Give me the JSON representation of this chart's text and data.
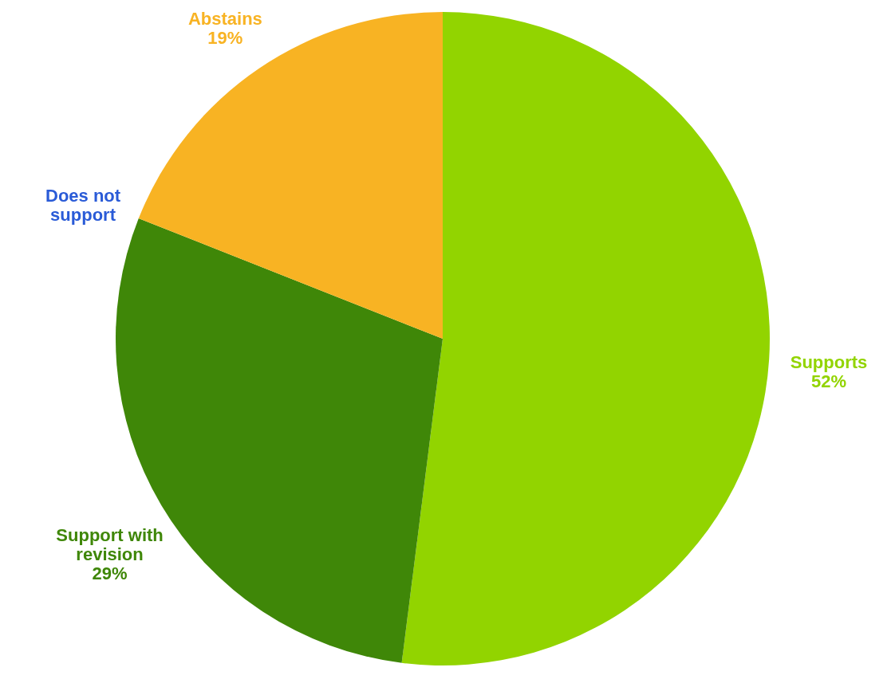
{
  "chart_data": {
    "type": "pie",
    "categories": [
      "Supports",
      "Support with revision",
      "Does not support",
      "Abstains"
    ],
    "values": [
      52,
      29,
      0,
      19
    ],
    "value_labels": [
      "52%",
      "29%",
      null,
      "19%"
    ],
    "colors": [
      "#92d400",
      "#3f8708",
      "#2a5bd7",
      "#f8b323"
    ],
    "legend": false
  }
}
